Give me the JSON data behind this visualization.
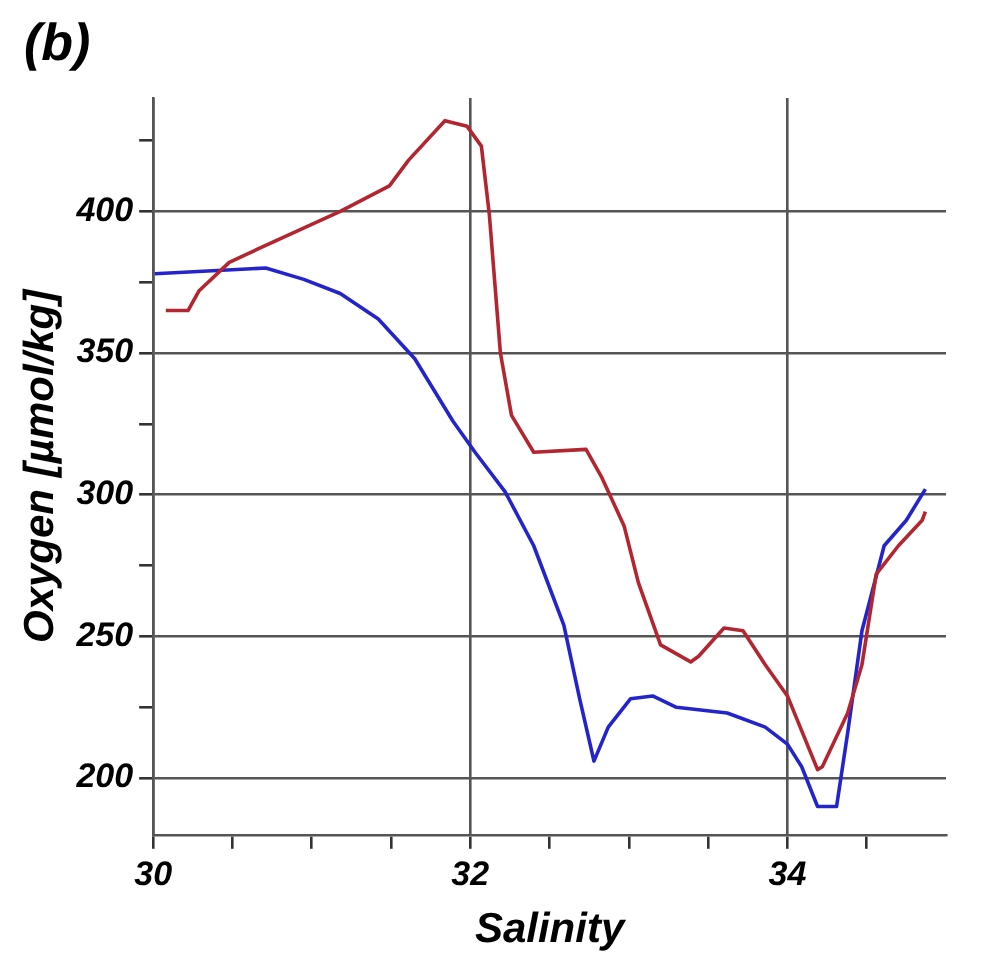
{
  "chart_data": {
    "type": "line",
    "xlabel": "Salinity",
    "ylabel": "Oxygen [µmol/kg]",
    "annotations": [
      "(b)"
    ],
    "xlim": [
      30,
      35
    ],
    "xticks": [
      30,
      {
        "value": 30.5,
        "label": null
      },
      {
        "value": 31,
        "label": null
      },
      {
        "value": 31.5,
        "label": null
      },
      32,
      {
        "value": 32.5,
        "label": null
      },
      {
        "value": 33,
        "label": null
      },
      {
        "value": 33.5,
        "label": null
      },
      34,
      {
        "value": 34.5,
        "label": null
      }
    ],
    "ylim": [
      180,
      440
    ],
    "yticks": [
      200,
      {
        "value": 225,
        "label": null
      },
      250,
      {
        "value": 275,
        "label": null
      },
      300,
      {
        "value": 325,
        "label": null
      },
      350,
      {
        "value": 375,
        "label": null
      },
      400,
      {
        "value": 425,
        "label": null
      }
    ],
    "grid": true,
    "marker": "none",
    "line_style": "solid",
    "series": [
      {
        "color": "#b32630",
        "x": [
          30.08,
          30.22,
          30.29,
          30.48,
          30.71,
          31.18,
          31.49,
          31.61,
          31.84,
          31.98,
          32.07,
          32.12,
          32.19,
          32.26,
          32.4,
          32.73,
          32.83,
          32.97,
          33.06,
          33.2,
          33.39,
          33.44,
          33.6,
          33.72,
          33.86,
          34.0,
          34.19,
          34.22,
          34.38,
          34.47,
          34.56,
          34.7,
          34.85,
          34.87
        ],
        "values": [
          365,
          365,
          372,
          382,
          388,
          400,
          409,
          418,
          432,
          430,
          423,
          399,
          350,
          328,
          315,
          316,
          306,
          289,
          269,
          247,
          241,
          243,
          253,
          252,
          240,
          229,
          203,
          204,
          223,
          240,
          272,
          282,
          291,
          294
        ]
      },
      {
        "color": "#2424cc",
        "x": [
          30.01,
          30.71,
          30.95,
          31.18,
          31.42,
          31.65,
          31.89,
          32.03,
          32.22,
          32.4,
          32.59,
          32.69,
          32.78,
          32.87,
          33.01,
          33.15,
          33.3,
          33.62,
          33.86,
          34.0,
          34.09,
          34.19,
          34.31,
          34.38,
          34.47,
          34.61,
          34.75,
          34.87
        ],
        "values": [
          378,
          380,
          376,
          371,
          362,
          348,
          326,
          315,
          301,
          282,
          254,
          228,
          206,
          218,
          228,
          229,
          225,
          223,
          218,
          212,
          204,
          190,
          190,
          216,
          252,
          282,
          291,
          302
        ]
      }
    ]
  }
}
